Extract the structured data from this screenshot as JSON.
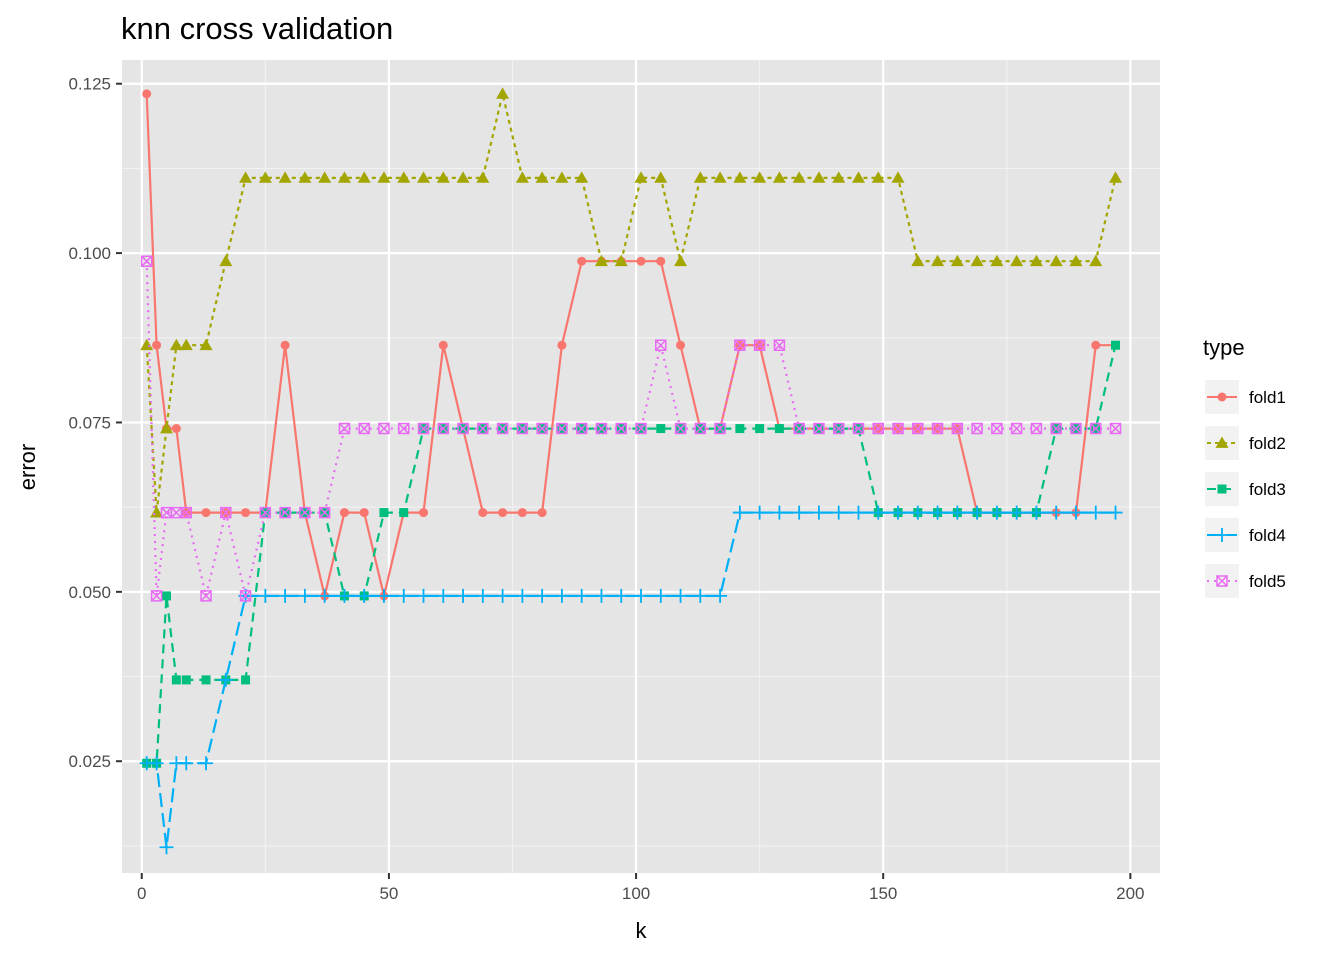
{
  "chart_data": {
    "type": "line",
    "title": "knn cross validation",
    "xlabel": "k",
    "ylabel": "error",
    "xlim": [
      -4,
      206
    ],
    "ylim": [
      0.0085,
      0.1285
    ],
    "x_ticks": [
      0,
      50,
      100,
      150,
      200
    ],
    "x_tick_labels": [
      "0",
      "50",
      "100",
      "150",
      "200"
    ],
    "y_ticks": [
      0.025,
      0.05,
      0.075,
      0.1,
      0.125
    ],
    "y_tick_labels": [
      "0.025",
      "0.050",
      "0.075",
      "0.100",
      "0.125"
    ],
    "grid": true,
    "legend": {
      "title": "type",
      "position": "right"
    },
    "x": [
      1,
      3,
      5,
      7,
      9,
      13,
      17,
      21,
      25,
      29,
      33,
      37,
      41,
      45,
      49,
      53,
      57,
      61,
      65,
      69,
      73,
      77,
      81,
      85,
      89,
      93,
      97,
      101,
      105,
      109,
      113,
      117,
      121,
      125,
      129,
      133,
      137,
      141,
      145,
      149,
      153,
      157,
      161,
      165,
      169,
      173,
      177,
      181,
      185,
      189,
      193,
      197
    ],
    "series": [
      {
        "name": "fold1",
        "color": "#F8766D",
        "dash": "solid",
        "shape": "circle",
        "values": [
          0.1235,
          0.0864,
          0.0741,
          0.0741,
          0.0617,
          0.0617,
          0.0617,
          0.0617,
          0.0617,
          0.0864,
          0.0617,
          0.0494,
          0.0617,
          0.0617,
          0.0494,
          0.0617,
          0.0617,
          0.0864,
          0.0741,
          0.0617,
          0.0617,
          0.0617,
          0.0617,
          0.0864,
          0.0988,
          0.0988,
          0.0988,
          0.0988,
          0.0988,
          0.0864,
          0.0741,
          0.0741,
          0.0864,
          0.0864,
          0.0741,
          0.0741,
          0.0741,
          0.0741,
          0.0741,
          0.0741,
          0.0741,
          0.0741,
          0.0741,
          0.0741,
          0.0617,
          0.0617,
          0.0617,
          0.0617,
          0.0617,
          0.0617,
          0.0864,
          0.0864
        ]
      },
      {
        "name": "fold2",
        "color": "#A3A500",
        "dash": "dotted",
        "shape": "triangle",
        "values": [
          0.0864,
          0.0617,
          0.0741,
          0.0864,
          0.0864,
          0.0864,
          0.0988,
          0.1111,
          0.1111,
          0.1111,
          0.1111,
          0.1111,
          0.1111,
          0.1111,
          0.1111,
          0.1111,
          0.1111,
          0.1111,
          0.1111,
          0.1111,
          0.1235,
          0.1111,
          0.1111,
          0.1111,
          0.1111,
          0.0988,
          0.0988,
          0.1111,
          0.1111,
          0.0988,
          0.1111,
          0.1111,
          0.1111,
          0.1111,
          0.1111,
          0.1111,
          0.1111,
          0.1111,
          0.1111,
          0.1111,
          0.1111,
          0.0988,
          0.0988,
          0.0988,
          0.0988,
          0.0988,
          0.0988,
          0.0988,
          0.0988,
          0.0988,
          0.0988,
          0.1111
        ]
      },
      {
        "name": "fold3",
        "color": "#00BF7D",
        "dash": "dashed",
        "shape": "square",
        "values": [
          0.0247,
          0.0247,
          0.0494,
          0.037,
          0.037,
          0.037,
          0.037,
          0.037,
          0.0617,
          0.0617,
          0.0617,
          0.0617,
          0.0494,
          0.0494,
          0.0617,
          0.0617,
          0.0741,
          0.0741,
          0.0741,
          0.0741,
          0.0741,
          0.0741,
          0.0741,
          0.0741,
          0.0741,
          0.0741,
          0.0741,
          0.0741,
          0.0741,
          0.0741,
          0.0741,
          0.0741,
          0.0741,
          0.0741,
          0.0741,
          0.0741,
          0.0741,
          0.0741,
          0.0741,
          0.0617,
          0.0617,
          0.0617,
          0.0617,
          0.0617,
          0.0617,
          0.0617,
          0.0617,
          0.0617,
          0.0741,
          0.0741,
          0.0741,
          0.0864
        ]
      },
      {
        "name": "fold4",
        "color": "#00B0F6",
        "dash": "longdash",
        "shape": "plus",
        "values": [
          0.0247,
          0.0247,
          0.0123,
          0.0247,
          0.0247,
          0.0247,
          0.037,
          0.0494,
          0.0494,
          0.0494,
          0.0494,
          0.0494,
          0.0494,
          0.0494,
          0.0494,
          0.0494,
          0.0494,
          0.0494,
          0.0494,
          0.0494,
          0.0494,
          0.0494,
          0.0494,
          0.0494,
          0.0494,
          0.0494,
          0.0494,
          0.0494,
          0.0494,
          0.0494,
          0.0494,
          0.0494,
          0.0617,
          0.0617,
          0.0617,
          0.0617,
          0.0617,
          0.0617,
          0.0617,
          0.0617,
          0.0617,
          0.0617,
          0.0617,
          0.0617,
          0.0617,
          0.0617,
          0.0617,
          0.0617,
          0.0617,
          0.0617,
          0.0617,
          0.0617
        ]
      },
      {
        "name": "fold5",
        "color": "#E76BF3",
        "dash": "dotdense",
        "shape": "boxx",
        "values": [
          0.0988,
          0.0494,
          0.0617,
          0.0617,
          0.0617,
          0.0494,
          0.0617,
          0.0494,
          0.0617,
          0.0617,
          0.0617,
          0.0617,
          0.0741,
          0.0741,
          0.0741,
          0.0741,
          0.0741,
          0.0741,
          0.0741,
          0.0741,
          0.0741,
          0.0741,
          0.0741,
          0.0741,
          0.0741,
          0.0741,
          0.0741,
          0.0741,
          0.0864,
          0.0741,
          0.0741,
          0.0741,
          0.0864,
          0.0864,
          0.0864,
          0.0741,
          0.0741,
          0.0741,
          0.0741,
          0.0741,
          0.0741,
          0.0741,
          0.0741,
          0.0741,
          0.0741,
          0.0741,
          0.0741,
          0.0741,
          0.0741,
          0.0741,
          0.0741,
          0.0741
        ]
      }
    ]
  }
}
